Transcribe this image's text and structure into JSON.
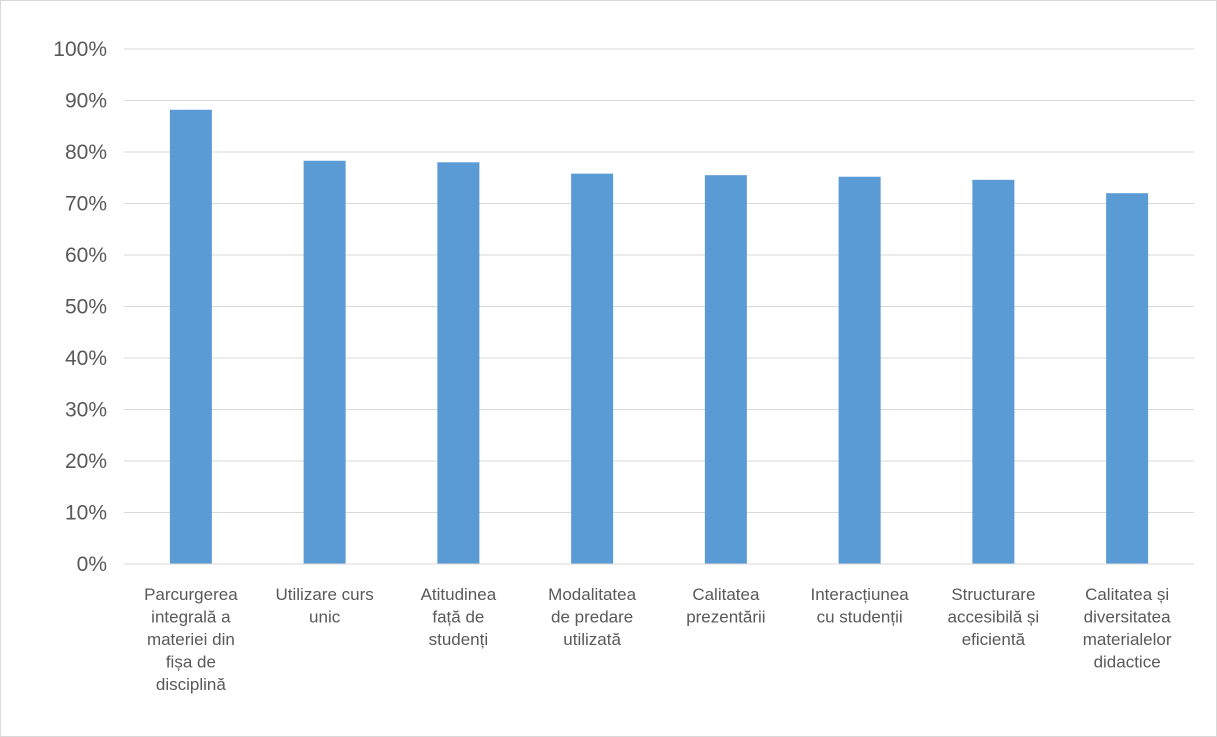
{
  "chart_data": {
    "type": "bar",
    "title": "",
    "xlabel": "",
    "ylabel": "",
    "ylim": [
      0,
      100
    ],
    "y_ticks": [
      "0%",
      "10%",
      "20%",
      "30%",
      "40%",
      "50%",
      "60%",
      "70%",
      "80%",
      "90%",
      "100%"
    ],
    "grid": true,
    "legend": "none",
    "bar_color": "#5b9bd5",
    "categories": [
      [
        "Parcurgerea",
        "integrală a",
        "materiei din",
        "fișa de",
        "disciplină"
      ],
      [
        "Utilizare curs",
        "unic"
      ],
      [
        "Atitudinea",
        "față de",
        "studenți"
      ],
      [
        "Modalitatea",
        "de predare",
        "utilizată"
      ],
      [
        "Calitatea",
        "prezentării"
      ],
      [
        "Interacțiunea",
        "cu studenții"
      ],
      [
        "Structurare",
        "accesibilă și",
        "eficientă"
      ],
      [
        "Calitatea și",
        "diversitatea",
        "materialelor",
        "didactice"
      ]
    ],
    "values": [
      88.2,
      78.3,
      78.0,
      75.8,
      75.5,
      75.2,
      74.6,
      72.0
    ]
  }
}
